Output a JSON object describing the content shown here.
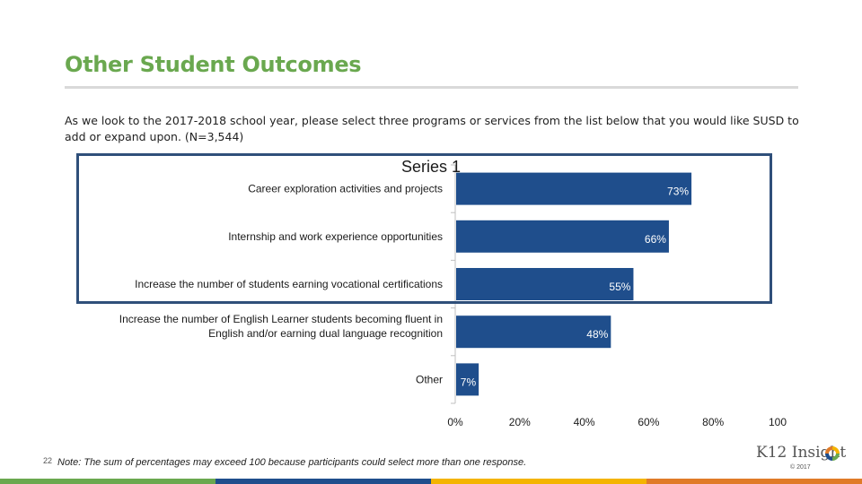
{
  "page": {
    "title": "Other Student Outcomes",
    "subtitle": "As we look to the 2017-2018 school year, please select three programs or services from the list below that you would like SUSD to add or expand upon. (N=3,544)",
    "page_number": "22",
    "note": "Note: The sum of percentages may exceed 100 because participants could select more than one response.",
    "logo_text": "K12 Insight",
    "copyright": "© 2017"
  },
  "colors": {
    "title": "#6aa84f",
    "bar": "#1f4e8c",
    "box": "#2f4f7a",
    "footer": [
      "#6aa84f",
      "#1f4e8c",
      "#f4b400",
      "#e07b28",
      "#7b5ea7"
    ]
  },
  "chart_data": {
    "type": "bar",
    "orientation": "horizontal",
    "series_name": "Series 1",
    "categories": [
      [
        "Career exploration activities and projects"
      ],
      [
        "Internship and work experience opportunities"
      ],
      [
        "Increase the number of students earning vocational certifications"
      ],
      [
        "Increase the number of English Learner students becoming fluent in",
        "English and/or earning dual language recognition"
      ],
      [
        "Other"
      ]
    ],
    "values": [
      73,
      66,
      55,
      48,
      7
    ],
    "value_labels": [
      "73%",
      "66%",
      "55%",
      "48%",
      "7%"
    ],
    "xlim": [
      0,
      100
    ],
    "ticks": [
      0,
      20,
      40,
      60,
      80,
      100
    ],
    "tick_labels": [
      "0%",
      "20%",
      "40%",
      "60%",
      "80%",
      "100"
    ],
    "gridlines": false
  }
}
